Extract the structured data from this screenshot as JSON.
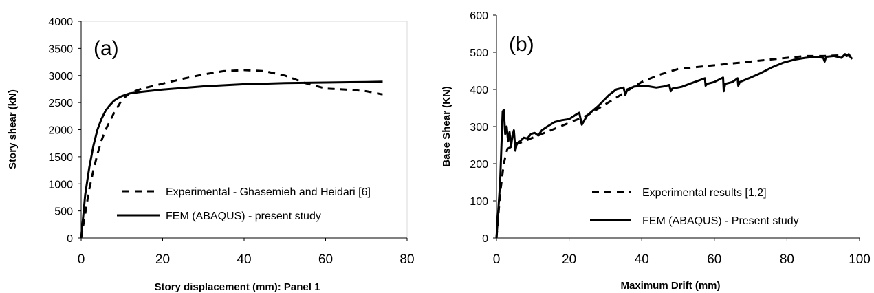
{
  "chart_data": [
    {
      "type": "line",
      "panel_label": "(a)",
      "xlabel": "Story displacement (mm): Panel 1",
      "ylabel": "Story shear (kN)",
      "xlim": [
        0,
        80
      ],
      "ylim": [
        0,
        4000
      ],
      "xticks": [
        "0",
        "20",
        "40",
        "60",
        "80"
      ],
      "yticks": [
        "0",
        "500",
        "1000",
        "1500",
        "2000",
        "2500",
        "3000",
        "3500",
        "4000"
      ],
      "grid": false,
      "legend_position": "bottom-center",
      "series": [
        {
          "name": "Experimental - Ghasemieh and Heidari [6]",
          "style": "dashed",
          "x": [
            0,
            1,
            2,
            3,
            4,
            5,
            6,
            8,
            10,
            12,
            15,
            20,
            25,
            30,
            35,
            40,
            45,
            50,
            55,
            58,
            60,
            65,
            70,
            74
          ],
          "y": [
            0,
            450,
            900,
            1250,
            1550,
            1800,
            2000,
            2300,
            2550,
            2680,
            2760,
            2850,
            2940,
            3020,
            3080,
            3100,
            3080,
            3000,
            2860,
            2800,
            2760,
            2740,
            2710,
            2650
          ]
        },
        {
          "name": "FEM (ABAQUS) - present study",
          "style": "solid",
          "x": [
            0,
            0.5,
            1,
            2,
            3,
            4,
            5,
            6,
            7,
            8,
            9,
            10,
            12,
            15,
            20,
            25,
            30,
            40,
            50,
            60,
            70,
            74
          ],
          "y": [
            0,
            400,
            800,
            1300,
            1700,
            2000,
            2200,
            2350,
            2450,
            2530,
            2580,
            2620,
            2670,
            2700,
            2740,
            2770,
            2800,
            2840,
            2860,
            2870,
            2880,
            2885
          ]
        }
      ]
    },
    {
      "type": "line",
      "panel_label": "(b)",
      "xlabel": "Maximum Drift (mm)",
      "ylabel": "Base Shear (KN)",
      "xlim": [
        0,
        100
      ],
      "ylim": [
        0,
        600
      ],
      "xticks": [
        "0",
        "20",
        "40",
        "60",
        "80",
        "100"
      ],
      "yticks": [
        "0",
        "100",
        "200",
        "300",
        "400",
        "500",
        "600"
      ],
      "grid": false,
      "legend_position": "bottom-center",
      "series": [
        {
          "name": "Experimental results [1,2]",
          "style": "dashed",
          "x": [
            0,
            1,
            2,
            3,
            5,
            10,
            15,
            20,
            25,
            30,
            35,
            40,
            45,
            50,
            55,
            60,
            65,
            70,
            75,
            80,
            85,
            90,
            95,
            98
          ],
          "y": [
            0,
            120,
            200,
            240,
            250,
            270,
            290,
            310,
            330,
            360,
            390,
            420,
            440,
            455,
            460,
            465,
            470,
            475,
            480,
            485,
            490,
            490,
            492,
            490
          ]
        },
        {
          "name": "FEM (ABAQUS) - Present study",
          "style": "solid",
          "x": [
            0,
            1,
            1.7,
            2,
            2.4,
            2.8,
            3.2,
            3.6,
            4,
            4.4,
            4.8,
            5.2,
            5.6,
            6.5,
            7.5,
            8.5,
            9.5,
            10.5,
            11.5,
            12.5,
            14,
            16,
            18,
            20,
            22,
            22.8,
            23.5,
            25,
            28,
            31,
            33,
            35,
            35.5,
            36,
            38,
            41,
            44,
            46,
            47.6,
            48,
            48.4,
            51,
            54,
            56,
            57.4,
            57.6,
            58,
            60,
            62,
            62.4,
            62.6,
            63,
            65,
            66.4,
            66.6,
            67,
            70,
            73,
            76,
            79,
            82,
            85,
            88,
            90,
            90.4,
            90.8,
            93,
            95,
            96,
            96.5,
            97,
            97.5,
            98
          ],
          "y": [
            0,
            150,
            340,
            345,
            280,
            300,
            260,
            285,
            245,
            275,
            290,
            235,
            255,
            260,
            270,
            268,
            280,
            283,
            276,
            290,
            300,
            312,
            317,
            320,
            333,
            337,
            305,
            330,
            355,
            385,
            400,
            405,
            385,
            400,
            408,
            410,
            405,
            408,
            412,
            395,
            402,
            407,
            418,
            425,
            430,
            410,
            415,
            420,
            430,
            432,
            395,
            415,
            420,
            430,
            410,
            420,
            432,
            445,
            460,
            472,
            480,
            485,
            488,
            485,
            475,
            488,
            490,
            485,
            495,
            490,
            495,
            487,
            482
          ]
        }
      ]
    }
  ]
}
